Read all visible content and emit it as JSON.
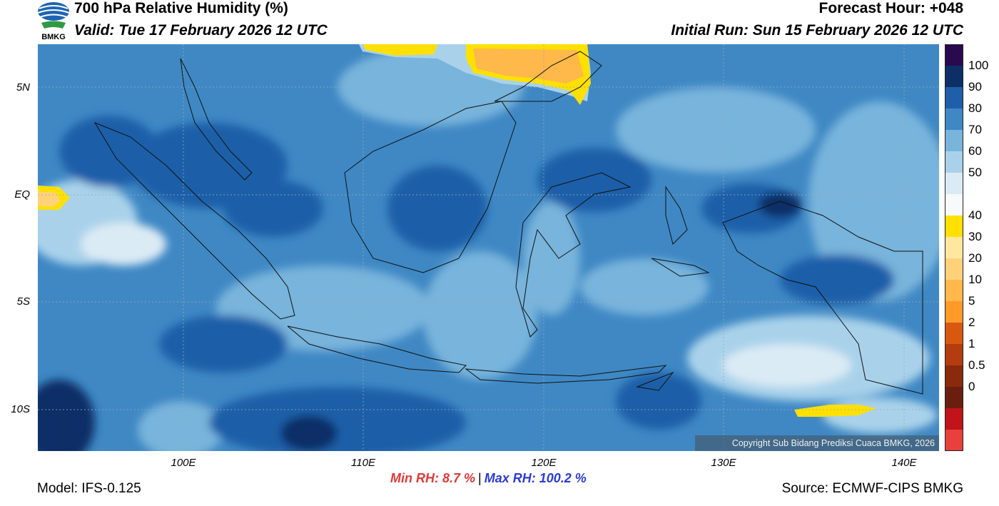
{
  "header": {
    "title": "700 hPa Relative Humidity (%)",
    "valid": "Valid: Tue 17 February 2026 12 UTC",
    "forecast_hour": "Forecast Hour: +048",
    "initial_run": "Initial Run: Sun 15 February 2026 12 UTC",
    "logo_text": "BMKG"
  },
  "map": {
    "lat_labels": [
      "5N",
      "EQ",
      "5S",
      "10S"
    ],
    "lon_labels": [
      "100E",
      "110E",
      "120E",
      "130E",
      "140E"
    ],
    "copyright": "Copyright Sub Bidang Prediksi Cuaca BMKG, 2026"
  },
  "colorbar": {
    "labels": [
      "100",
      "90",
      "80",
      "70",
      "60",
      "50",
      "40",
      "30",
      "20",
      "10",
      "5",
      "2",
      "1",
      "0.5",
      "0"
    ],
    "colors": [
      "#2a0a4e",
      "#0c2f66",
      "#1f5ea8",
      "#3f88c4",
      "#78b4db",
      "#a9d2ea",
      "#dbebf5",
      "#f7f9fb",
      "#ffe000",
      "#ffe7a0",
      "#ffd27a",
      "#ffb84a",
      "#ff9a28",
      "#d9580f",
      "#b43d10",
      "#8a2a0c",
      "#6a1f0e",
      "#c0141a",
      "#e8403c"
    ]
  },
  "footer": {
    "model": "Model: IFS-0.125",
    "source": "Source: ECMWF-CIPS BMKG",
    "min_rh": "Min RH:   8.7 %",
    "separator": "|",
    "max_rh": "Max RH: 100.2 %"
  }
}
